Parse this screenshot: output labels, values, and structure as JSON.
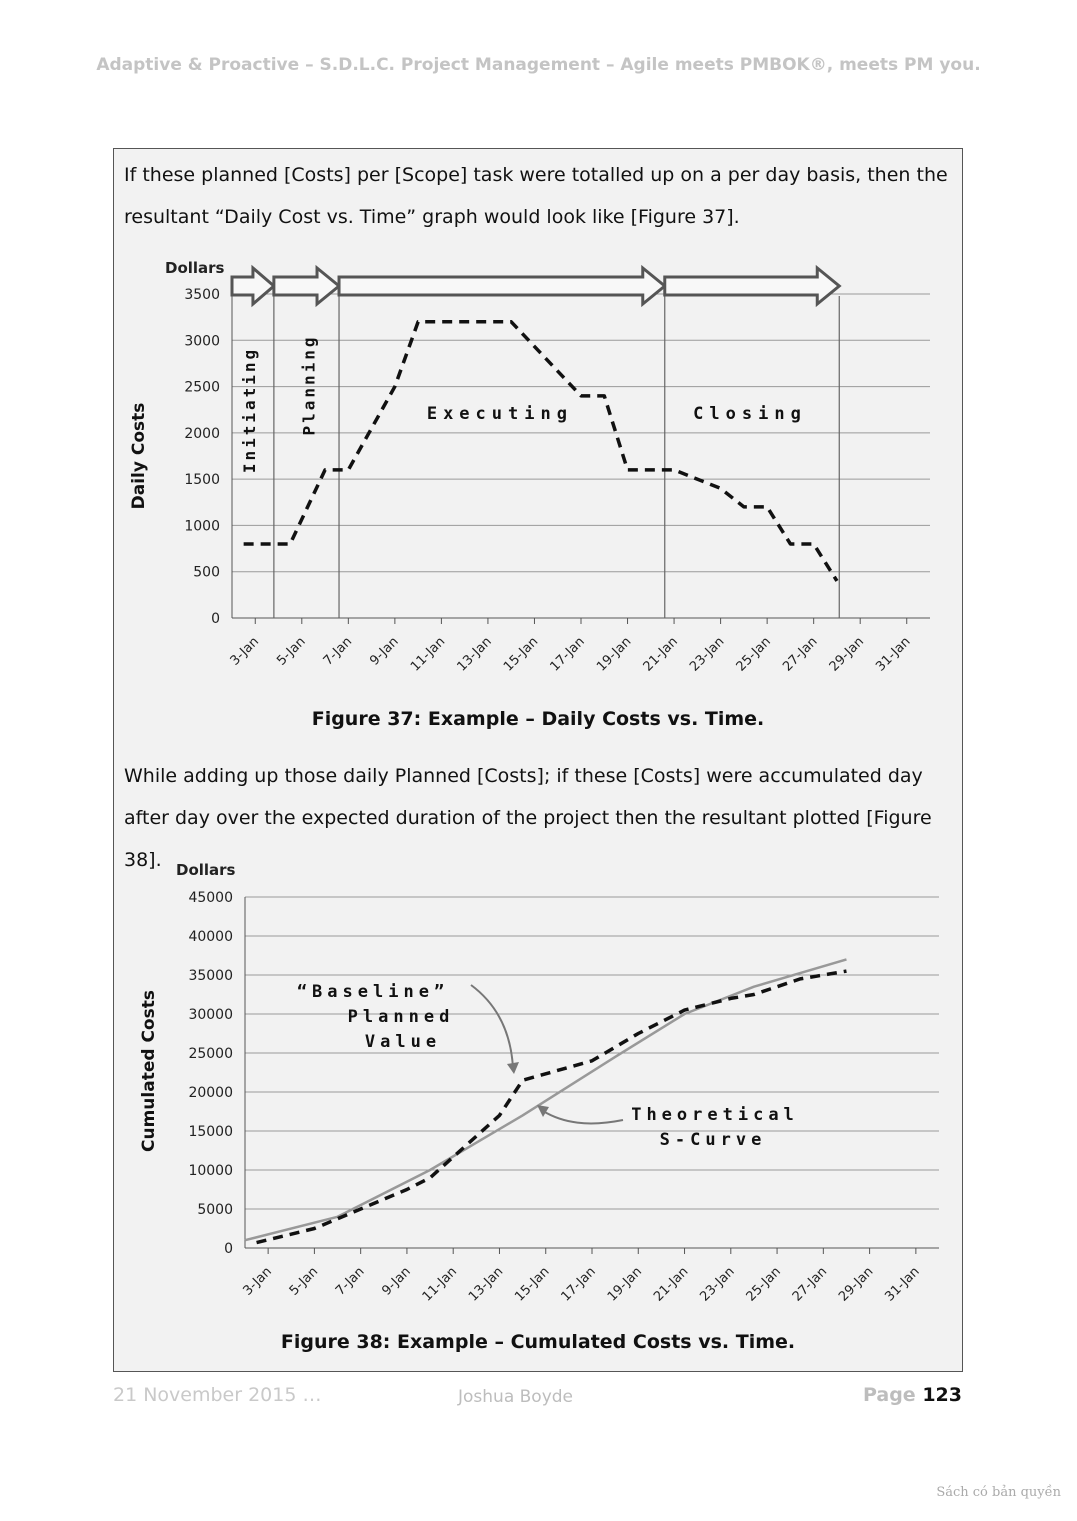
{
  "header": "Adaptive & Proactive – S.D.L.C. Project Management – Agile meets PMBOK®, meets PM you.",
  "paragraph1": "If these planned [Costs] per [Scope] task were totalled up on a per day basis, then the resultant “Daily Cost vs. Time” graph would look like [Figure 37].",
  "paragraph2": "While adding up those daily Planned [Costs]; if these [Costs] were accumulated day after day over the expected duration of the project then the resultant plotted [Figure 38].",
  "caption1": "Figure 37: Example – Daily Costs vs. Time.",
  "caption2": "Figure 38: Example – Cumulated Costs vs. Time.",
  "footer": {
    "date": "21 November 2015 …",
    "author": "Joshua Boyde",
    "page_label": "Page",
    "page_number": "123"
  },
  "watermark": "Sách có bản quyền",
  "chart_data": [
    {
      "type": "line",
      "unit_label": "Dollars",
      "ylabel": "Daily Costs",
      "ylim": [
        0,
        3500
      ],
      "yticks": [
        0,
        500,
        1000,
        1500,
        2000,
        2500,
        3000,
        3500
      ],
      "xlim": [
        "2-Jan",
        "32-Jan"
      ],
      "xtick_labels": [
        "3-Jan",
        "5-Jan",
        "7-Jan",
        "9-Jan",
        "11-Jan",
        "13-Jan",
        "15-Jan",
        "17-Jan",
        "19-Jan",
        "21-Jan",
        "23-Jan",
        "25-Jan",
        "27-Jan",
        "29-Jan",
        "31-Jan"
      ],
      "grid": "horizontal",
      "series": [
        {
          "style": "dashed",
          "color": "#111111",
          "points": [
            [
              "2.5-Jan",
              800
            ],
            [
              "4.5-Jan",
              800
            ],
            [
              "6-Jan",
              1600
            ],
            [
              "7-Jan",
              1600
            ],
            [
              "9-Jan",
              2500
            ],
            [
              "10-Jan",
              3200
            ],
            [
              "12-Jan",
              3200
            ],
            [
              "14-Jan",
              3200
            ],
            [
              "17-Jan",
              2400
            ],
            [
              "18-Jan",
              2400
            ],
            [
              "19-Jan",
              1600
            ],
            [
              "21-Jan",
              1600
            ],
            [
              "23-Jan",
              1400
            ],
            [
              "24-Jan",
              1200
            ],
            [
              "25-Jan",
              1200
            ],
            [
              "26-Jan",
              800
            ],
            [
              "27-Jan",
              800
            ],
            [
              "28-Jan",
              400
            ]
          ]
        }
      ],
      "phases": [
        {
          "label": "Initiating",
          "start": "2-Jan",
          "end": "3.8-Jan",
          "orientation": "vertical"
        },
        {
          "label": "Planning",
          "start": "3.8-Jan",
          "end": "6.6-Jan",
          "orientation": "vertical"
        },
        {
          "label": "Executing",
          "start": "6.6-Jan",
          "end": "20.6-Jan",
          "orientation": "horizontal"
        },
        {
          "label": "Closing",
          "start": "20.6-Jan",
          "end": "28.1-Jan",
          "orientation": "horizontal"
        }
      ]
    },
    {
      "type": "line",
      "unit_label": "Dollars",
      "ylabel": "Cumulated Costs",
      "ylim": [
        0,
        45000
      ],
      "yticks": [
        0,
        5000,
        10000,
        15000,
        20000,
        25000,
        30000,
        35000,
        40000,
        45000
      ],
      "xlim": [
        "2-Jan",
        "32-Jan"
      ],
      "xtick_labels": [
        "3-Jan",
        "5-Jan",
        "7-Jan",
        "9-Jan",
        "11-Jan",
        "13-Jan",
        "15-Jan",
        "17-Jan",
        "19-Jan",
        "21-Jan",
        "23-Jan",
        "25-Jan",
        "27-Jan",
        "29-Jan",
        "31-Jan"
      ],
      "grid": "horizontal",
      "series": [
        {
          "style": "solid",
          "color": "#999999",
          "points": [
            [
              "2-Jan",
              1000
            ],
            [
              "6-Jan",
              4000
            ],
            [
              "10-Jan",
              10000
            ],
            [
              "14-Jan",
              17000
            ],
            [
              "18-Jan",
              24500
            ],
            [
              "21-Jan",
              30000
            ],
            [
              "24-Jan",
              33500
            ],
            [
              "28-Jan",
              37000
            ]
          ]
        },
        {
          "style": "dashed",
          "color": "#111111",
          "points": [
            [
              "2.5-Jan",
              700
            ],
            [
              "5-Jan",
              2500
            ],
            [
              "7-Jan",
              5000
            ],
            [
              "9-Jan",
              7500
            ],
            [
              "10-Jan",
              9000
            ],
            [
              "13-Jan",
              17000
            ],
            [
              "14-Jan",
              21500
            ],
            [
              "17-Jan",
              24000
            ],
            [
              "19-Jan",
              27500
            ],
            [
              "21-Jan",
              30500
            ],
            [
              "23-Jan",
              32000
            ],
            [
              "24-Jan",
              32500
            ],
            [
              "26-Jan",
              34500
            ],
            [
              "28-Jan",
              35500
            ]
          ]
        }
      ],
      "annotations": [
        {
          "lines": [
            "“Baseline”",
            "Planned",
            "Value"
          ]
        },
        {
          "lines": [
            "Theoretical",
            "S-Curve"
          ]
        }
      ]
    }
  ]
}
